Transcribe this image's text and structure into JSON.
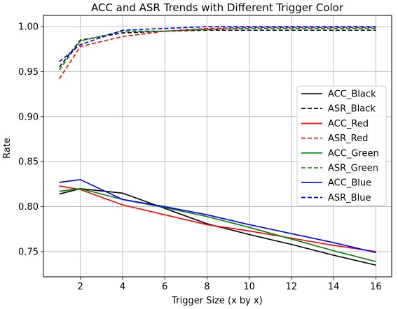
{
  "chart_data": {
    "type": "line",
    "title": "ACC and ASR Trends with Different Trigger Color",
    "xlabel": "Trigger Size (x by x)",
    "ylabel": "Rate",
    "xlim": [
      0.25,
      16.75
    ],
    "ylim": [
      0.722,
      1.0125
    ],
    "xticks": [
      2,
      4,
      6,
      8,
      10,
      12,
      14,
      16
    ],
    "yticks": [
      0.75,
      0.8,
      0.85,
      0.9,
      0.95,
      1.0
    ],
    "ytick_labels": [
      "0.75",
      "0.80",
      "0.85",
      "0.90",
      "0.95",
      "1.00"
    ],
    "grid": true,
    "legend_position": "center-right",
    "x": [
      1,
      2,
      4,
      6,
      8,
      10,
      12,
      14,
      16
    ],
    "series": [
      {
        "name": "ACC_Black",
        "color": "#000000",
        "style": "solid",
        "values": [
          0.814,
          0.82,
          0.815,
          0.798,
          0.781,
          0.769,
          0.758,
          0.746,
          0.735
        ]
      },
      {
        "name": "ASR_Black",
        "color": "#000000",
        "style": "dashed",
        "values": [
          0.955,
          0.985,
          0.993,
          0.995,
          0.996,
          0.996,
          0.996,
          0.996,
          0.996
        ]
      },
      {
        "name": "ACC_Red",
        "color": "#ff0000",
        "style": "solid",
        "values": [
          0.823,
          0.819,
          0.802,
          0.791,
          0.78,
          0.773,
          0.765,
          0.757,
          0.75
        ]
      },
      {
        "name": "ASR_Red",
        "color": "#ff0000",
        "style": "dashed",
        "values": [
          0.942,
          0.978,
          0.989,
          0.995,
          0.998,
          0.999,
          0.999,
          0.999,
          0.999
        ]
      },
      {
        "name": "ACC_Green",
        "color": "#008000",
        "style": "solid",
        "values": [
          0.817,
          0.82,
          0.808,
          0.799,
          0.789,
          0.777,
          0.764,
          0.751,
          0.739
        ]
      },
      {
        "name": "ASR_Green",
        "color": "#008000",
        "style": "dashed",
        "values": [
          0.952,
          0.984,
          0.995,
          0.995,
          0.997,
          0.998,
          0.998,
          0.998,
          0.998
        ]
      },
      {
        "name": "ACC_Blue",
        "color": "#0000ff",
        "style": "solid",
        "values": [
          0.827,
          0.83,
          0.808,
          0.8,
          0.791,
          0.78,
          0.77,
          0.76,
          0.749
        ]
      },
      {
        "name": "ASR_Blue",
        "color": "#0000ff",
        "style": "dashed",
        "values": [
          0.961,
          0.98,
          0.996,
          0.998,
          1.0,
          1.0,
          1.0,
          1.0,
          1.0
        ]
      }
    ]
  }
}
